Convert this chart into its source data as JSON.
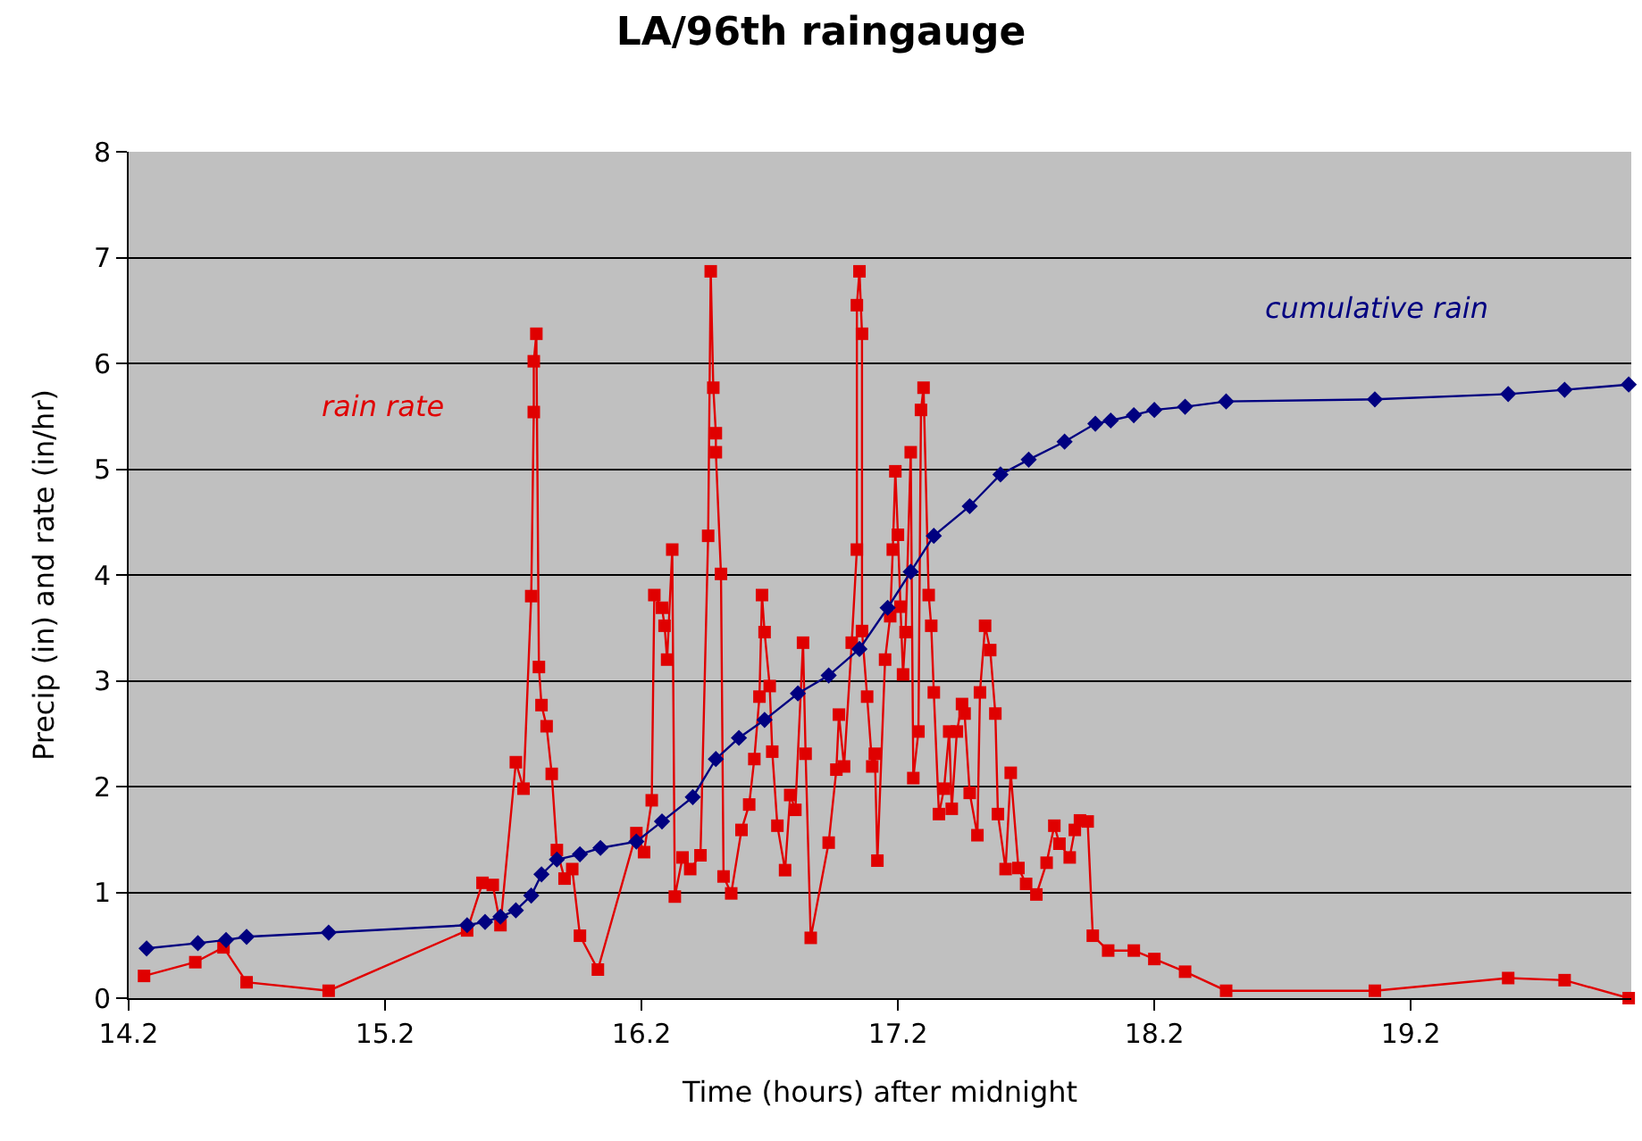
{
  "chart_data": {
    "type": "line",
    "title": "LA/96th raingauge",
    "xlabel": "Time (hours) after midnight",
    "ylabel": "Precip (in) and rate (in/hr)",
    "xlim": [
      14.2,
      20.06
    ],
    "xticks": [
      14.2,
      15.2,
      16.2,
      17.2,
      18.2,
      19.2
    ],
    "ylim": [
      0,
      8
    ],
    "yticks": [
      0,
      1,
      2,
      3,
      4,
      5,
      6,
      7,
      8
    ],
    "grid": "y",
    "series": [
      {
        "name": "rain rate",
        "color": "#e00000",
        "marker": "square",
        "x": [
          14.26,
          14.46,
          14.57,
          14.66,
          14.98,
          15.52,
          15.58,
          15.62,
          15.65,
          15.71,
          15.74,
          15.77,
          15.78,
          15.78,
          15.79,
          15.8,
          15.81,
          15.83,
          15.85,
          15.87,
          15.9,
          15.93,
          15.96,
          16.03,
          16.18,
          16.21,
          16.24,
          16.25,
          16.28,
          16.29,
          16.3,
          16.32,
          16.33,
          16.36,
          16.39,
          16.43,
          16.46,
          16.47,
          16.48,
          16.49,
          16.49,
          16.51,
          16.52,
          16.55,
          16.59,
          16.62,
          16.64,
          16.66,
          16.67,
          16.68,
          16.7,
          16.71,
          16.73,
          16.76,
          16.78,
          16.8,
          16.83,
          16.84,
          16.86,
          16.93,
          16.96,
          16.97,
          16.99,
          17.02,
          17.04,
          17.04,
          17.05,
          17.06,
          17.06,
          17.08,
          17.1,
          17.11,
          17.12,
          17.15,
          17.17,
          17.18,
          17.19,
          17.2,
          17.21,
          17.22,
          17.23,
          17.25,
          17.26,
          17.28,
          17.29,
          17.3,
          17.32,
          17.33,
          17.34,
          17.36,
          17.38,
          17.4,
          17.41,
          17.43,
          17.45,
          17.46,
          17.48,
          17.51,
          17.52,
          17.54,
          17.56,
          17.58,
          17.59,
          17.62,
          17.64,
          17.67,
          17.7,
          17.74,
          17.78,
          17.81,
          17.83,
          17.87,
          17.89,
          17.91,
          17.94,
          17.96,
          18.02,
          18.12,
          18.2,
          18.32,
          18.48,
          19.06,
          19.58,
          19.8,
          20.05
        ],
        "values": [
          0.21,
          0.34,
          0.48,
          0.15,
          0.07,
          0.64,
          1.09,
          1.07,
          0.69,
          2.23,
          1.98,
          3.8,
          5.54,
          6.02,
          6.28,
          3.13,
          2.77,
          2.57,
          2.12,
          1.4,
          1.13,
          1.22,
          0.59,
          0.27,
          1.56,
          1.38,
          1.87,
          3.81,
          3.69,
          3.52,
          3.2,
          4.24,
          0.96,
          1.33,
          1.22,
          1.35,
          4.37,
          6.87,
          5.77,
          5.34,
          5.16,
          4.01,
          1.15,
          0.99,
          1.59,
          1.83,
          2.26,
          2.85,
          3.81,
          3.46,
          2.95,
          2.33,
          1.63,
          1.21,
          1.92,
          1.78,
          3.36,
          2.31,
          0.57,
          1.47,
          2.16,
          2.68,
          2.19,
          3.36,
          4.24,
          6.55,
          6.87,
          6.28,
          3.47,
          2.85,
          2.19,
          2.31,
          1.3,
          3.2,
          3.61,
          4.24,
          4.98,
          4.38,
          3.7,
          3.06,
          3.46,
          5.16,
          2.08,
          2.52,
          5.56,
          5.77,
          3.81,
          3.52,
          2.89,
          1.74,
          1.98,
          2.52,
          1.79,
          2.52,
          2.78,
          2.69,
          1.94,
          1.54,
          2.89,
          3.52,
          3.29,
          2.69,
          1.74,
          1.22,
          2.13,
          1.23,
          1.08,
          0.98,
          1.28,
          1.63,
          1.46,
          1.33,
          1.59,
          1.68,
          1.67,
          0.59,
          0.45,
          0.45,
          0.37,
          0.25,
          0.07,
          0.07,
          0.19,
          0.17,
          0.0
        ]
      },
      {
        "name": "cumulative rain",
        "color": "#000080",
        "marker": "diamond",
        "x": [
          14.27,
          14.47,
          14.58,
          14.66,
          14.98,
          15.52,
          15.59,
          15.65,
          15.71,
          15.77,
          15.81,
          15.87,
          15.96,
          16.04,
          16.18,
          16.28,
          16.4,
          16.49,
          16.58,
          16.68,
          16.81,
          16.93,
          17.05,
          17.16,
          17.25,
          17.34,
          17.48,
          17.6,
          17.71,
          17.85,
          17.97,
          18.03,
          18.12,
          18.2,
          18.32,
          18.48,
          19.06,
          19.58,
          19.8,
          20.05
        ],
        "values": [
          0.47,
          0.52,
          0.55,
          0.58,
          0.62,
          0.69,
          0.72,
          0.77,
          0.83,
          0.97,
          1.17,
          1.31,
          1.36,
          1.42,
          1.48,
          1.67,
          1.9,
          2.26,
          2.46,
          2.63,
          2.88,
          3.05,
          3.3,
          3.69,
          4.03,
          4.37,
          4.65,
          4.95,
          5.09,
          5.26,
          5.43,
          5.46,
          5.51,
          5.56,
          5.59,
          5.64,
          5.66,
          5.71,
          5.75,
          5.8
        ]
      }
    ]
  }
}
